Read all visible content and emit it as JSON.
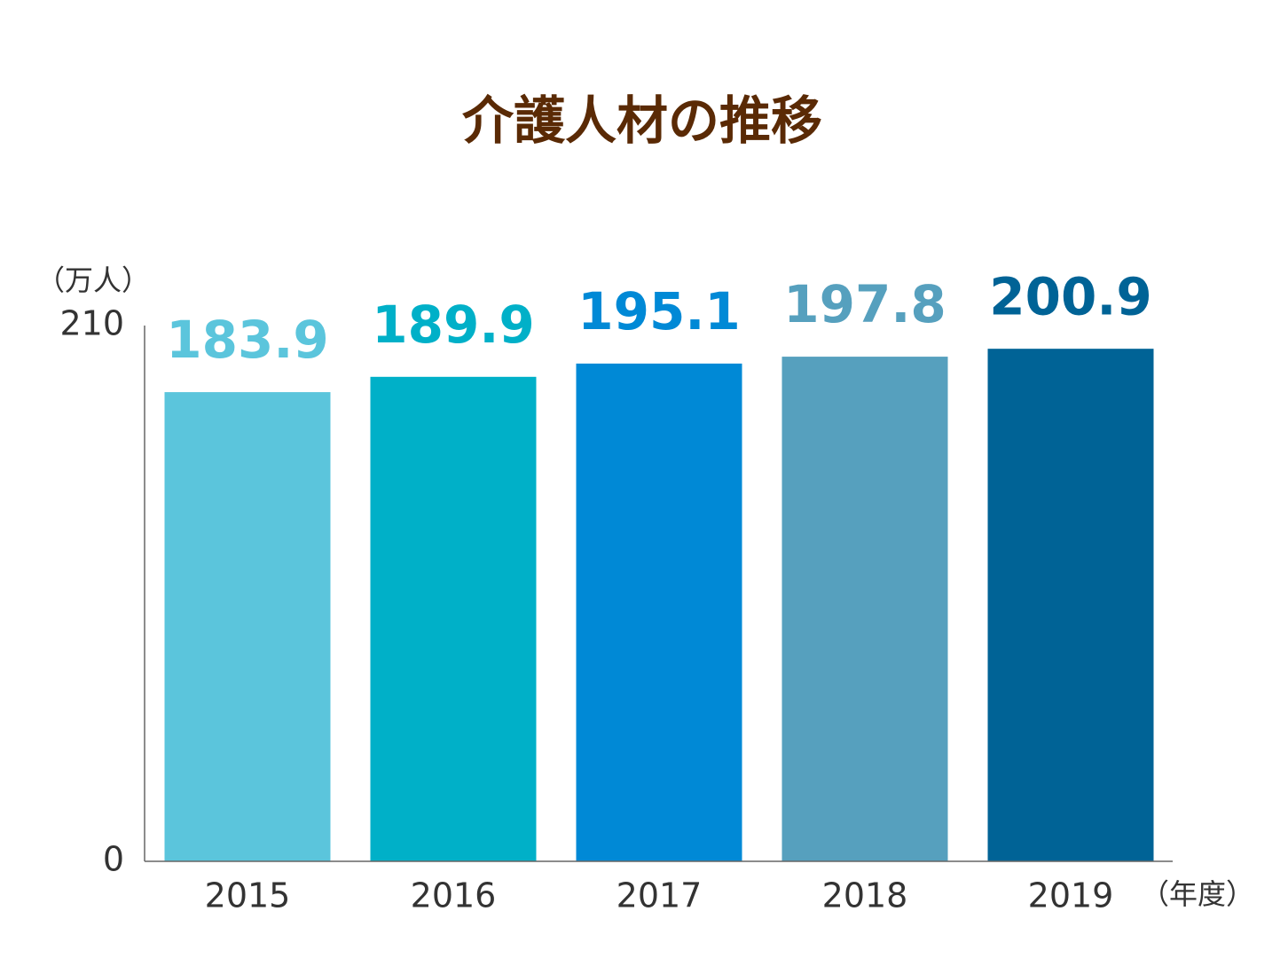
{
  "chart_data": {
    "type": "bar",
    "title": "介護人材の推移",
    "y_label": "（万人）",
    "x_label": "（年度）",
    "categories": [
      "2015",
      "2016",
      "2017",
      "2018",
      "2019"
    ],
    "values": [
      183.9,
      189.9,
      195.1,
      197.8,
      200.9
    ],
    "colors": [
      "#5bc5dc",
      "#00b0c8",
      "#0089d6",
      "#56a0be",
      "#006396"
    ],
    "ylim": [
      0,
      210
    ],
    "yticks": [
      0,
      210
    ],
    "grid": false
  }
}
